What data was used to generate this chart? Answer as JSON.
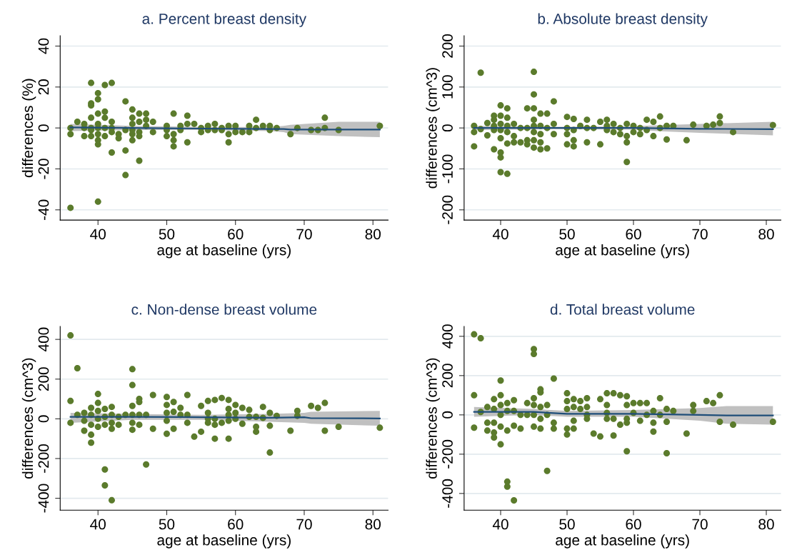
{
  "chart_data": [
    {
      "type": "scatter",
      "title": "a. Percent breast density",
      "xlabel": "age at baseline (yrs)",
      "ylabel": "differences (%)",
      "xlim": [
        34.5,
        82.2
      ],
      "xticks": [
        40,
        50,
        60,
        70,
        80
      ],
      "ylim": [
        -45,
        45
      ],
      "yticks": [
        -40,
        -20,
        0,
        20,
        40
      ],
      "grid": "y",
      "series": [
        {
          "marker": "circle",
          "color": "#5b7b2c",
          "x": [
            36,
            36,
            36,
            37,
            38,
            38,
            38,
            39,
            39,
            39,
            39,
            39,
            39,
            39,
            40,
            40,
            40,
            40,
            40,
            40,
            40,
            40,
            40,
            41,
            41,
            41,
            41,
            41,
            42,
            42,
            42,
            42,
            42,
            43,
            43,
            44,
            44,
            44,
            44,
            45,
            45,
            45,
            45,
            45,
            45,
            46,
            46,
            46,
            46,
            46,
            47,
            47,
            47,
            48,
            48,
            50,
            50,
            50,
            51,
            51,
            51,
            51,
            52,
            52,
            53,
            53,
            53,
            54,
            55,
            55,
            56,
            56,
            57,
            57,
            58,
            58,
            59,
            59,
            59,
            60,
            60,
            61,
            62,
            62,
            63,
            63,
            64,
            65,
            65,
            66,
            68,
            69,
            71,
            72,
            73,
            73,
            75,
            81
          ],
          "values": [
            0,
            -3,
            -39,
            3,
            2,
            -4,
            0,
            22,
            12,
            11,
            5,
            -1,
            -4,
            0,
            17,
            14,
            7,
            2,
            -3,
            -6,
            -8,
            -36,
            0,
            21,
            8,
            5,
            0,
            -4,
            22,
            3,
            -2,
            -12,
            0,
            -3,
            -5,
            13,
            -1,
            -11,
            -23,
            9,
            5,
            2,
            -1,
            -3,
            -6,
            7,
            3,
            -2,
            -4,
            -16,
            7,
            4,
            1,
            3,
            -2,
            1,
            -1,
            -4,
            7,
            -3,
            -6,
            -9,
            -1,
            1,
            6,
            2,
            -7,
            2,
            0,
            -2,
            1,
            -1,
            2,
            -1,
            -1,
            0,
            1,
            -3,
            -7,
            1,
            -2,
            -2,
            1,
            -2,
            4,
            0,
            1,
            1,
            -1,
            0,
            -3,
            0,
            -1,
            -1,
            5,
            0,
            -1,
            1
          ]
        },
        {
          "type": "line",
          "color": "#1f4e79",
          "x": [
            36,
            45,
            55,
            65,
            67,
            68,
            75,
            81
          ],
          "values": [
            0.3,
            0,
            -0.3,
            -0.5,
            -0.5,
            -0.8,
            -0.8,
            -0.8
          ],
          "lower": [
            -1.5,
            -1,
            -1,
            -1.5,
            -2,
            -3,
            -4,
            -4.5
          ],
          "upper": [
            2,
            1,
            0.5,
            0.5,
            1,
            1.5,
            3,
            3
          ]
        }
      ]
    },
    {
      "type": "scatter",
      "title": "b. Absolute breast density",
      "xlabel": "age at baseline (yrs)",
      "ylabel": "differences (cm^3)",
      "xlim": [
        34.5,
        82.2
      ],
      "xticks": [
        40,
        50,
        60,
        70,
        80
      ],
      "ylim": [
        -225,
        225
      ],
      "yticks": [
        -200,
        -100,
        0,
        100,
        200
      ],
      "grid": "y",
      "series": [
        {
          "marker": "circle",
          "color": "#5b7b2c",
          "x": [
            36,
            36,
            36,
            37,
            37,
            38,
            38,
            39,
            39,
            39,
            39,
            39,
            40,
            40,
            40,
            40,
            40,
            40,
            40,
            40,
            41,
            41,
            41,
            41,
            41,
            41,
            42,
            42,
            42,
            43,
            43,
            44,
            44,
            44,
            44,
            45,
            45,
            45,
            45,
            45,
            45,
            45,
            45,
            46,
            46,
            46,
            46,
            46,
            47,
            47,
            47,
            48,
            48,
            48,
            50,
            50,
            50,
            50,
            51,
            51,
            51,
            51,
            52,
            53,
            53,
            53,
            54,
            55,
            55,
            56,
            56,
            56,
            57,
            57,
            58,
            58,
            59,
            59,
            59,
            59,
            60,
            60,
            61,
            61,
            62,
            62,
            63,
            63,
            64,
            64,
            65,
            65,
            66,
            68,
            69,
            71,
            72,
            73,
            73,
            75,
            81
          ],
          "values": [
            5,
            -10,
            -45,
            135,
            -3,
            12,
            -18,
            30,
            20,
            5,
            -5,
            -52,
            55,
            30,
            10,
            -5,
            -25,
            -60,
            -72,
            -108,
            48,
            25,
            5,
            -10,
            -38,
            -112,
            10,
            -20,
            -35,
            0,
            -35,
            48,
            0,
            -30,
            -40,
            137,
            82,
            48,
            20,
            5,
            -10,
            -30,
            -48,
            35,
            5,
            -15,
            -35,
            -52,
            35,
            0,
            -50,
            65,
            10,
            -15,
            27,
            0,
            -15,
            -40,
            22,
            -5,
            -30,
            -45,
            5,
            20,
            0,
            -35,
            0,
            15,
            -40,
            20,
            5,
            -5,
            10,
            -10,
            0,
            -15,
            10,
            -20,
            -35,
            -83,
            5,
            -10,
            0,
            -15,
            20,
            -5,
            15,
            -20,
            28,
            0,
            5,
            -28,
            5,
            -30,
            8,
            5,
            8,
            28,
            12,
            -10,
            7
          ]
        },
        {
          "type": "line",
          "color": "#1f4e79",
          "x": [
            36,
            48,
            60,
            64,
            70,
            81
          ],
          "values": [
            0,
            0,
            0,
            -1,
            -2,
            -3
          ],
          "lower": [
            -5,
            -3,
            -4,
            -8,
            -12,
            -18
          ],
          "upper": [
            5,
            3,
            4,
            7,
            10,
            15
          ]
        }
      ]
    },
    {
      "type": "scatter",
      "title": "c. Non-dense breast volume",
      "xlabel": "age at baseline (yrs)",
      "ylabel": "differences (cm^3)",
      "xlim": [
        34.5,
        82.2
      ],
      "xticks": [
        40,
        50,
        60,
        70,
        80
      ],
      "ylim": [
        -460,
        465
      ],
      "yticks": [
        -400,
        -200,
        0,
        200,
        400
      ],
      "grid": "y",
      "series": [
        {
          "marker": "circle",
          "color": "#5b7b2c",
          "x": [
            36,
            36,
            36,
            37,
            37,
            38,
            38,
            38,
            39,
            39,
            39,
            39,
            39,
            40,
            40,
            40,
            40,
            40,
            41,
            41,
            41,
            41,
            41,
            42,
            42,
            42,
            42,
            42,
            43,
            43,
            44,
            45,
            45,
            45,
            45,
            45,
            45,
            46,
            46,
            46,
            46,
            47,
            47,
            48,
            48,
            50,
            50,
            50,
            50,
            50,
            51,
            51,
            51,
            52,
            52,
            53,
            53,
            53,
            54,
            55,
            55,
            56,
            56,
            56,
            56,
            57,
            57,
            57,
            57,
            58,
            58,
            59,
            59,
            59,
            59,
            59,
            60,
            60,
            60,
            61,
            61,
            62,
            62,
            63,
            63,
            63,
            64,
            64,
            65,
            65,
            65,
            66,
            68,
            69,
            69,
            71,
            72,
            73,
            73,
            75,
            81
          ],
          "values": [
            420,
            90,
            -20,
            255,
            20,
            30,
            -10,
            -60,
            55,
            20,
            -30,
            -80,
            -120,
            125,
            80,
            40,
            0,
            -40,
            50,
            10,
            -30,
            -255,
            -335,
            60,
            20,
            -20,
            -50,
            -410,
            10,
            -30,
            20,
            250,
            170,
            65,
            20,
            -20,
            -55,
            100,
            85,
            20,
            -30,
            20,
            -230,
            120,
            -50,
            110,
            70,
            30,
            -10,
            -75,
            85,
            35,
            -50,
            55,
            20,
            120,
            20,
            -20,
            -90,
            65,
            -65,
            90,
            30,
            0,
            -20,
            95,
            0,
            -30,
            -100,
            105,
            -20,
            95,
            50,
            20,
            -10,
            -100,
            70,
            30,
            0,
            55,
            -25,
            45,
            10,
            10,
            -40,
            -65,
            60,
            5,
            30,
            -35,
            -170,
            15,
            -60,
            40,
            15,
            65,
            55,
            80,
            -60,
            -40,
            -45
          ]
        },
        {
          "type": "line",
          "color": "#1f4e79",
          "x": [
            36,
            45,
            55,
            65,
            70,
            71,
            81
          ],
          "values": [
            10,
            10,
            8,
            5,
            8,
            3,
            2
          ],
          "lower": [
            -20,
            -5,
            -5,
            -15,
            -20,
            -25,
            -35
          ],
          "upper": [
            30,
            25,
            20,
            25,
            30,
            35,
            40
          ]
        }
      ]
    },
    {
      "type": "scatter",
      "title": "d. Total breast volume",
      "xlabel": "age at baseline (yrs)",
      "ylabel": "differences (cm^3)",
      "xlim": [
        34.5,
        82.2
      ],
      "xticks": [
        40,
        50,
        60,
        70,
        80
      ],
      "ylim": [
        -485,
        450
      ],
      "yticks": [
        -400,
        -200,
        0,
        200,
        400
      ],
      "grid": "y",
      "series": [
        {
          "marker": "circle",
          "color": "#5b7b2c",
          "x": [
            36,
            36,
            36,
            37,
            37,
            38,
            38,
            38,
            39,
            39,
            39,
            39,
            39,
            40,
            40,
            40,
            40,
            40,
            40,
            41,
            41,
            41,
            41,
            41,
            42,
            42,
            42,
            42,
            43,
            43,
            44,
            44,
            45,
            45,
            45,
            45,
            45,
            45,
            46,
            46,
            46,
            46,
            46,
            47,
            47,
            47,
            48,
            48,
            48,
            50,
            50,
            50,
            50,
            50,
            51,
            51,
            51,
            51,
            52,
            52,
            53,
            53,
            53,
            53,
            54,
            55,
            55,
            56,
            56,
            56,
            56,
            57,
            57,
            57,
            58,
            58,
            59,
            59,
            59,
            59,
            59,
            60,
            60,
            61,
            61,
            62,
            62,
            63,
            63,
            63,
            64,
            64,
            65,
            65,
            65,
            66,
            68,
            69,
            69,
            71,
            72,
            73,
            73,
            75,
            81
          ],
          "values": [
            410,
            100,
            -65,
            390,
            15,
            40,
            -40,
            -80,
            80,
            30,
            -40,
            -90,
            -115,
            175,
            100,
            50,
            0,
            -60,
            -150,
            60,
            20,
            -80,
            -340,
            -365,
            75,
            20,
            -55,
            -435,
            0,
            -70,
            60,
            0,
            335,
            310,
            85,
            50,
            0,
            -60,
            130,
            115,
            40,
            -20,
            -70,
            50,
            0,
            -285,
            185,
            -40,
            -70,
            110,
            70,
            30,
            -70,
            -100,
            80,
            40,
            -30,
            -70,
            70,
            30,
            85,
            40,
            0,
            -20,
            -95,
            80,
            -110,
            110,
            50,
            10,
            -20,
            110,
            -20,
            -105,
            100,
            -50,
            95,
            50,
            -20,
            -40,
            -185,
            60,
            10,
            60,
            -30,
            60,
            0,
            20,
            -40,
            -85,
            85,
            0,
            30,
            -35,
            -195,
            20,
            -95,
            50,
            20,
            70,
            60,
            100,
            -35,
            -50,
            -35
          ]
        },
        {
          "type": "line",
          "color": "#1f4e79",
          "x": [
            36,
            45,
            50,
            60,
            70,
            74,
            81
          ],
          "values": [
            15,
            15,
            5,
            5,
            0,
            -3,
            -3
          ],
          "lower": [
            -10,
            0,
            -10,
            -10,
            -30,
            -45,
            -50
          ],
          "upper": [
            40,
            30,
            20,
            25,
            35,
            45,
            45
          ]
        }
      ]
    }
  ]
}
